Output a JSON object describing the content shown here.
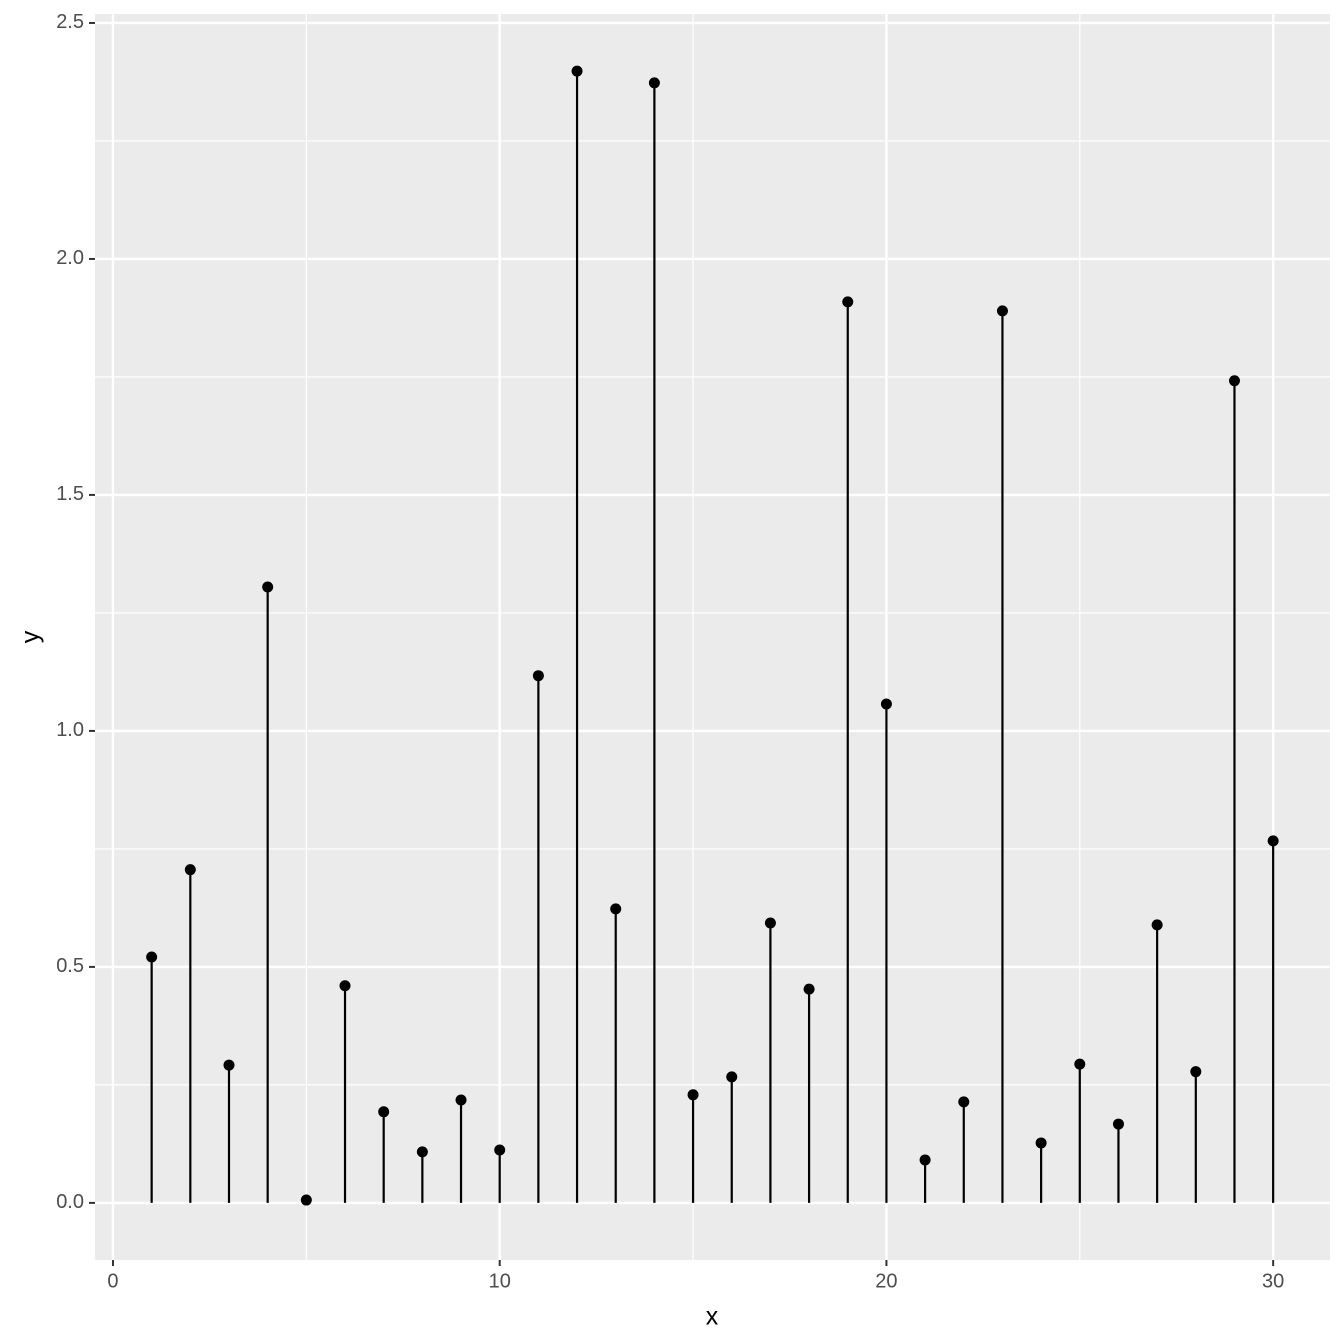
{
  "chart_data": {
    "type": "lollipop",
    "x_label": "x",
    "y_label": "y",
    "x": [
      1,
      2,
      3,
      4,
      5,
      6,
      7,
      8,
      9,
      10,
      11,
      12,
      13,
      14,
      15,
      16,
      17,
      18,
      19,
      20,
      21,
      22,
      23,
      24,
      25,
      26,
      27,
      28,
      29,
      30
    ],
    "values": [
      0.521,
      0.706,
      0.292,
      1.305,
      0.006,
      0.46,
      0.193,
      0.108,
      0.218,
      0.112,
      1.117,
      2.398,
      0.623,
      2.373,
      0.229,
      0.267,
      0.593,
      0.453,
      1.909,
      1.057,
      0.091,
      0.214,
      1.89,
      0.127,
      0.294,
      0.167,
      0.589,
      0.278,
      1.742,
      0.767
    ],
    "color": "#000000",
    "xlim": [
      -0.465,
      31.47
    ],
    "ylim": [
      -0.121,
      2.519
    ],
    "xticks": [
      0,
      10,
      20,
      30
    ],
    "yticks": [
      {
        "value": 0,
        "label": "0.0"
      },
      {
        "value": 0.5,
        "label": "0.5"
      },
      {
        "value": 1,
        "label": "1.0"
      },
      {
        "value": 1.5,
        "label": "1.5"
      },
      {
        "value": 2,
        "label": "2.0"
      },
      {
        "value": 2.5,
        "label": "2.5"
      }
    ],
    "grid": true
  }
}
